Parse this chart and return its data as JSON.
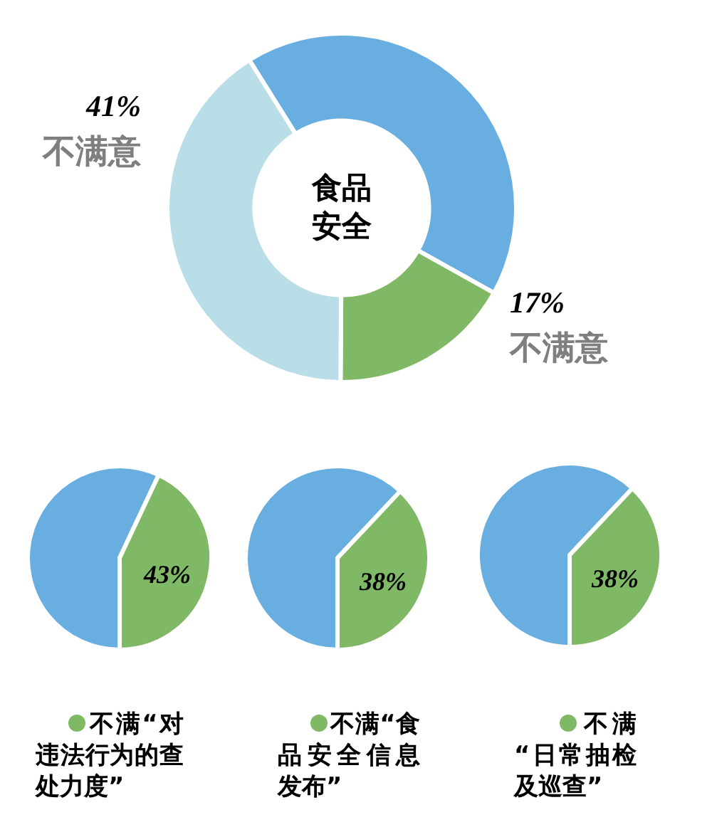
{
  "chart_data": [
    {
      "type": "donut",
      "title": "食品安全",
      "categories": [
        null,
        "不满意",
        "不满意"
      ],
      "values": [
        42,
        17,
        41
      ],
      "colors": [
        "#68aee0",
        "#80b965",
        "#badee8"
      ],
      "value_labels": [
        null,
        "17%",
        "41%"
      ]
    },
    {
      "type": "pie",
      "categories": [
        null,
        "不满“对违法行为的查处力度”"
      ],
      "values": [
        57,
        43
      ],
      "colors": [
        "#68aee0",
        "#80b965"
      ],
      "value_labels": [
        null,
        "43%"
      ],
      "legend": "bottom"
    },
    {
      "type": "pie",
      "categories": [
        null,
        "不满“食品安全信息发布”"
      ],
      "values": [
        62,
        38
      ],
      "colors": [
        "#68aee0",
        "#80b965"
      ],
      "value_labels": [
        null,
        "38%"
      ],
      "legend": "bottom"
    },
    {
      "type": "pie",
      "categories": [
        null,
        "不满“日常抽检及巡查”"
      ],
      "values": [
        62,
        38
      ],
      "colors": [
        "#68aee0",
        "#80b965"
      ],
      "value_labels": [
        null,
        "38%"
      ],
      "legend": "bottom"
    }
  ]
}
